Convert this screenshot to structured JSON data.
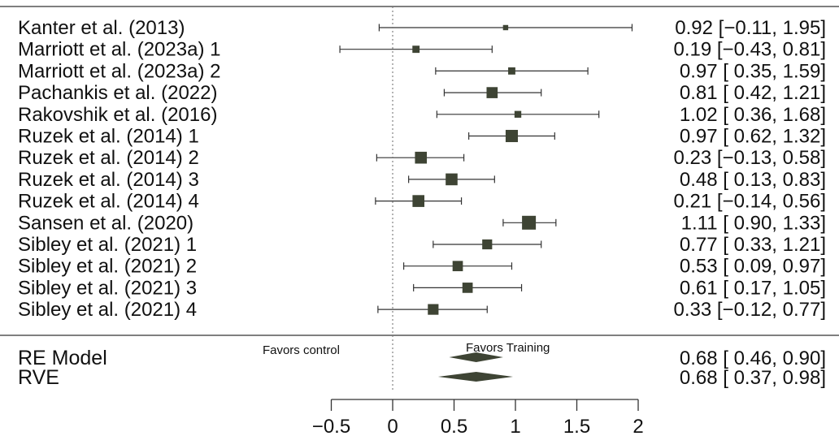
{
  "chart_data": {
    "type": "forest",
    "studies": [
      {
        "label": "Kanter et al. (2013)",
        "est": 0.92,
        "lo": -0.11,
        "hi": 1.95,
        "ci_text": "0.92 [−0.11, 1.95]",
        "weight": 0.6
      },
      {
        "label": "Marriott et al. (2023a) 1",
        "est": 0.19,
        "lo": -0.43,
        "hi": 0.81,
        "ci_text": "0.19 [−0.43, 0.81]",
        "weight": 1.6
      },
      {
        "label": "Marriott et al. (2023a) 2",
        "est": 0.97,
        "lo": 0.35,
        "hi": 1.59,
        "ci_text": "0.97 [ 0.35, 1.59]",
        "weight": 1.6
      },
      {
        "label": "Pachankis et al. (2022)",
        "est": 0.81,
        "lo": 0.42,
        "hi": 1.21,
        "ci_text": "0.81 [ 0.42, 1.21]",
        "weight": 3.6
      },
      {
        "label": "Rakovshik et al. (2016)",
        "est": 1.02,
        "lo": 0.36,
        "hi": 1.68,
        "ci_text": "1.02 [ 0.36, 1.68]",
        "weight": 1.4
      },
      {
        "label": "Ruzek et al. (2014) 1",
        "est": 0.97,
        "lo": 0.62,
        "hi": 1.32,
        "ci_text": "0.97 [ 0.62, 1.32]",
        "weight": 4.2
      },
      {
        "label": "Ruzek et al. (2014) 2",
        "est": 0.23,
        "lo": -0.13,
        "hi": 0.58,
        "ci_text": "0.23 [−0.13, 0.58]",
        "weight": 4.0
      },
      {
        "label": "Ruzek et al. (2014) 3",
        "est": 0.48,
        "lo": 0.13,
        "hi": 0.83,
        "ci_text": "0.48 [ 0.13, 0.83]",
        "weight": 4.0
      },
      {
        "label": "Ruzek et al. (2014) 4",
        "est": 0.21,
        "lo": -0.14,
        "hi": 0.56,
        "ci_text": "0.21 [−0.14, 0.56]",
        "weight": 4.0
      },
      {
        "label": "Sansen et al. (2020)",
        "est": 1.11,
        "lo": 0.9,
        "hi": 1.33,
        "ci_text": "1.11 [ 0.90, 1.33]",
        "weight": 5.0
      },
      {
        "label": "Sibley et al. (2021) 1",
        "est": 0.77,
        "lo": 0.33,
        "hi": 1.21,
        "ci_text": "0.77 [ 0.33, 1.21]",
        "weight": 3.0
      },
      {
        "label": "Sibley et al. (2021) 2",
        "est": 0.53,
        "lo": 0.09,
        "hi": 0.97,
        "ci_text": "0.53 [ 0.09, 0.97]",
        "weight": 3.2
      },
      {
        "label": "Sibley et al. (2021) 3",
        "est": 0.61,
        "lo": 0.17,
        "hi": 1.05,
        "ci_text": "0.61 [ 0.17, 1.05]",
        "weight": 3.2
      },
      {
        "label": "Sibley et al. (2021) 4",
        "est": 0.33,
        "lo": -0.12,
        "hi": 0.77,
        "ci_text": "0.33 [−0.12, 0.77]",
        "weight": 3.4
      }
    ],
    "summaries": [
      {
        "label": "RE Model",
        "est": 0.68,
        "lo": 0.46,
        "hi": 0.9,
        "ci_text": "0.68 [ 0.46, 0.90]"
      },
      {
        "label": "RVE",
        "est": 0.68,
        "lo": 0.37,
        "hi": 0.98,
        "ci_text": "0.68 [ 0.37, 0.98]"
      }
    ],
    "x_ticks": [
      -0.5,
      0,
      0.5,
      1,
      1.5,
      2
    ],
    "x_tick_labels": [
      "−0.5",
      "0",
      "0.5",
      "1",
      "1.5",
      "2"
    ],
    "xlim": [
      -0.5,
      2
    ],
    "reference_line": 0,
    "favors_left": "Favors control",
    "favors_right": "Favors Training",
    "colors": {
      "marker": "#3e4434",
      "line": "#333333",
      "ref_line": "#777777"
    }
  }
}
